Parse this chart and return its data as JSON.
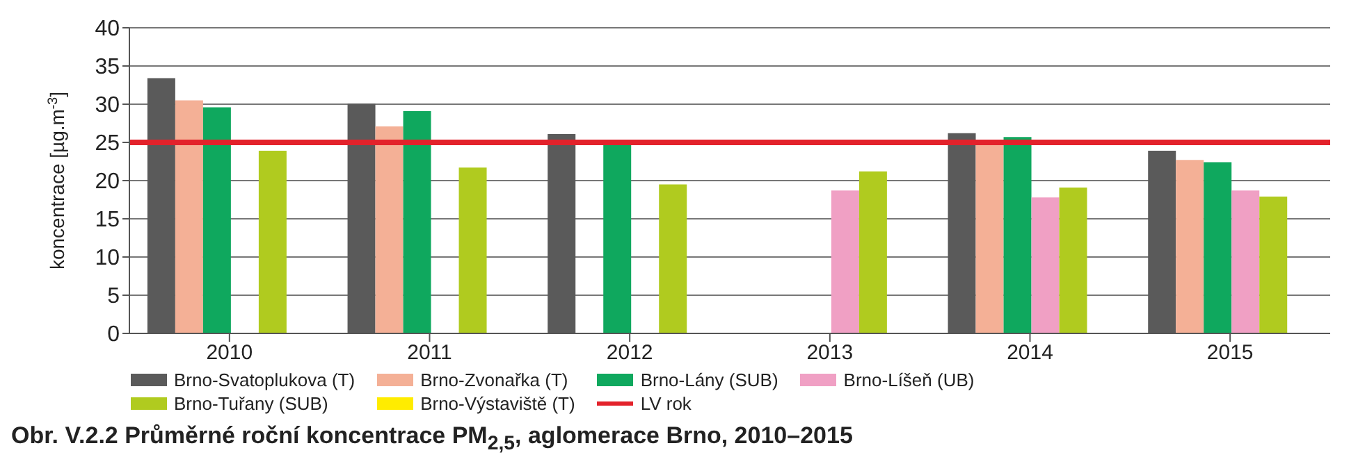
{
  "chart_data": {
    "type": "bar",
    "title": "Obr. V.2.2  Průměrné roční koncentrace PM$_{2,5}$, aglomerace Brno, 2010–2015",
    "ylabel": "koncentrace [µg.m$^{-3}$]",
    "categories": [
      "2010",
      "2011",
      "2012",
      "2013",
      "2014",
      "2015"
    ],
    "series": [
      {
        "name": "Brno-Svatoplukova (T)",
        "color": "#5a5a5a",
        "values": [
          33.4,
          30.1,
          26.1,
          null,
          26.2,
          23.9
        ]
      },
      {
        "name": "Brno-Zvonařka (T)",
        "color": "#f4b096",
        "values": [
          30.5,
          27.1,
          null,
          null,
          25,
          22.7
        ]
      },
      {
        "name": "Brno-Lány (SUB)",
        "color": "#0fa85e",
        "values": [
          29.6,
          29.1,
          25,
          null,
          25.7,
          22.4
        ]
      },
      {
        "name": "Brno-Líšeň (UB)",
        "color": "#f0a0c4",
        "values": [
          null,
          null,
          null,
          18.7,
          17.8,
          18.7
        ]
      },
      {
        "name": "Brno-Tuřany (SUB)",
        "color": "#b0cb1f",
        "values": [
          23.9,
          21.7,
          19.5,
          21.2,
          19.1,
          17.9
        ]
      },
      {
        "name": "Brno-Výstaviště (T)",
        "color": "#ffec00",
        "values": [
          null,
          null,
          null,
          null,
          null,
          null
        ]
      }
    ],
    "ref_lines": [
      {
        "axis": "y",
        "value": 25,
        "label": "LV rok",
        "color": "#e3222b"
      }
    ],
    "ylim": [
      0,
      40
    ],
    "yticks": [
      0,
      5,
      10,
      15,
      20,
      25,
      30,
      35,
      40
    ],
    "grid": "y",
    "legend": "bottom"
  }
}
